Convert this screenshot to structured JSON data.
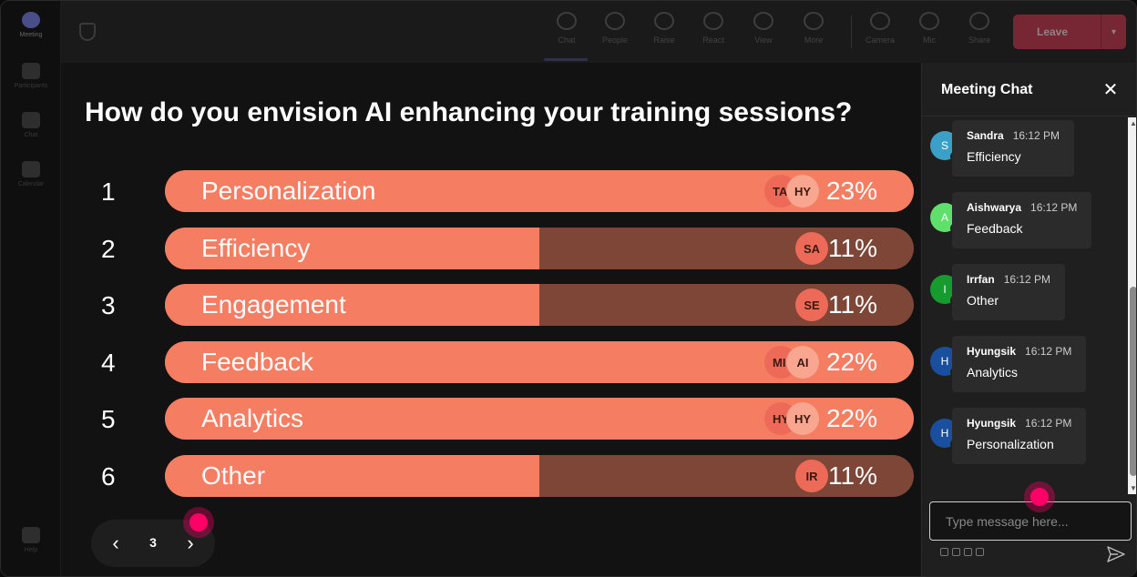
{
  "rail": {
    "items": [
      {
        "label": "Meeting",
        "active": true
      },
      {
        "label": "Participants",
        "active": false
      },
      {
        "label": "Chat",
        "active": false
      },
      {
        "label": "Calendar",
        "active": false
      },
      {
        "label": "Help",
        "active": false
      }
    ]
  },
  "toolbar": {
    "buttons": [
      {
        "label": "Chat",
        "icon": "chat-icon",
        "selected": true
      },
      {
        "label": "People",
        "icon": "people-icon"
      },
      {
        "label": "Raise",
        "icon": "raise-hand-icon"
      },
      {
        "label": "React",
        "icon": "react-icon"
      },
      {
        "label": "View",
        "icon": "view-icon"
      },
      {
        "label": "More",
        "icon": "more-icon"
      },
      {
        "label": "Camera",
        "icon": "camera-icon"
      },
      {
        "label": "Mic",
        "icon": "mic-icon"
      },
      {
        "label": "Share",
        "icon": "share-icon"
      }
    ],
    "leave_label": "Leave",
    "leave_color": "#c4314b"
  },
  "poll": {
    "question": "How do you envision AI enhancing your training sessions?",
    "options": [
      {
        "rank": "1",
        "label": "Personalization",
        "percent": "23%",
        "fraction": 1.0,
        "voters": [
          "TA",
          "HY"
        ]
      },
      {
        "rank": "2",
        "label": "Efficiency",
        "percent": "11%",
        "fraction": 0.5,
        "voters": [
          "SA"
        ]
      },
      {
        "rank": "3",
        "label": "Engagement",
        "percent": "11%",
        "fraction": 0.5,
        "voters": [
          "SE"
        ]
      },
      {
        "rank": "4",
        "label": "Feedback",
        "percent": "22%",
        "fraction": 1.0,
        "voters": [
          "MI",
          "AI"
        ]
      },
      {
        "rank": "5",
        "label": "Analytics",
        "percent": "22%",
        "fraction": 1.0,
        "voters": [
          "HY",
          "HY"
        ]
      },
      {
        "rank": "6",
        "label": "Other",
        "percent": "11%",
        "fraction": 0.5,
        "voters": [
          "IR"
        ]
      }
    ],
    "colors": {
      "fill": "#f47d62",
      "track": "#7d4637"
    }
  },
  "pager": {
    "page": "3"
  },
  "chat": {
    "title": "Meeting Chat",
    "messages": [
      {
        "initial": "S",
        "name": "Sandra",
        "time": "16:12 PM",
        "text": "Efficiency",
        "color": "#3aa0c8"
      },
      {
        "initial": "A",
        "name": "Aishwarya",
        "time": "16:12 PM",
        "text": "Feedback",
        "color": "#5ee06a"
      },
      {
        "initial": "I",
        "name": "Irrfan",
        "time": "16:12 PM",
        "text": "Other",
        "color": "#169c2e"
      },
      {
        "initial": "H",
        "name": "Hyungsik",
        "time": "16:12 PM",
        "text": "Analytics",
        "color": "#1a4fa0"
      },
      {
        "initial": "H",
        "name": "Hyungsik",
        "time": "16:12 PM",
        "text": "Personalization",
        "color": "#1a4fa0"
      }
    ],
    "compose_placeholder": "Type message here..."
  }
}
